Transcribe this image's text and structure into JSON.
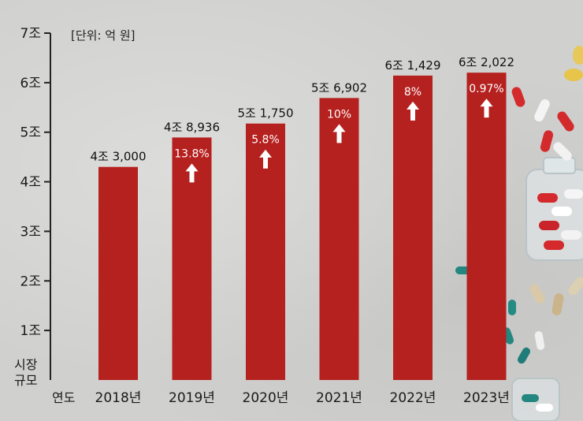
{
  "chart_data": {
    "type": "bar",
    "unit_note": "[단위: 억 원]",
    "ylabel_lines": [
      "시장",
      "규모"
    ],
    "xlabel": "연도",
    "y_ticks": [
      {
        "value": 10000,
        "label": "1조"
      },
      {
        "value": 20000,
        "label": "2조"
      },
      {
        "value": 30000,
        "label": "3조"
      },
      {
        "value": 40000,
        "label": "4조"
      },
      {
        "value": 50000,
        "label": "5조"
      },
      {
        "value": 60000,
        "label": "6조"
      },
      {
        "value": 70000,
        "label": "7조"
      }
    ],
    "ylim": [
      0,
      70000
    ],
    "categories": [
      "2018년",
      "2019년",
      "2020년",
      "2021년",
      "2022년",
      "2023년"
    ],
    "values": [
      43000,
      48936,
      51750,
      56902,
      61429,
      62022
    ],
    "value_labels": [
      "4조 3,000",
      "4조 8,936",
      "5조 1,750",
      "5조 6,902",
      "6조 1,429",
      "6조 2,022"
    ],
    "growth_labels": [
      "",
      "13.8%",
      "5.8%",
      "10%",
      "8%",
      "0.97%"
    ],
    "bar_color": "#b5211f",
    "grid": false
  }
}
